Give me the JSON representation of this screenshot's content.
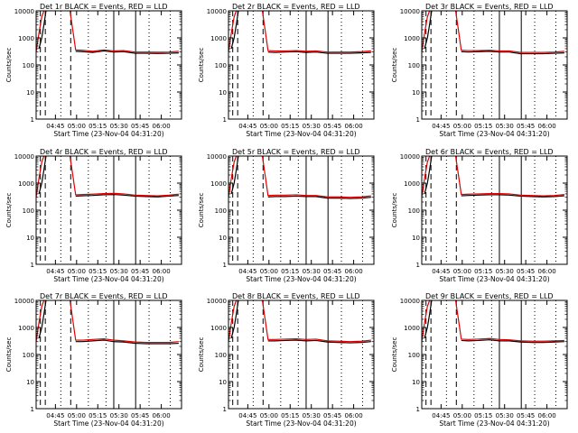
{
  "chart_data": {
    "type": "line",
    "layout": "3x3 grid of panels",
    "xlabel": "Start Time (23-Nov-04 04:31:20)",
    "ylabel": "Counts/sec",
    "yscale": "log",
    "ylim": [
      1,
      10000
    ],
    "yticks": [
      {
        "value": 1,
        "label": "1"
      },
      {
        "value": 10,
        "label": "10"
      },
      {
        "value": 100,
        "label": "100"
      },
      {
        "value": 1000,
        "label": "1000"
      },
      {
        "value": 10000,
        "label": "10000"
      }
    ],
    "xlim_minutes_after_0431": [
      0,
      103
    ],
    "xticks": [
      {
        "t": 13.67,
        "label": "04:45"
      },
      {
        "t": 28.67,
        "label": "05:00"
      },
      {
        "t": 43.67,
        "label": "05:15"
      },
      {
        "t": 58.67,
        "label": "05:30"
      },
      {
        "t": 73.67,
        "label": "05:45"
      },
      {
        "t": 88.67,
        "label": "06:00"
      }
    ],
    "x_units": "minutes after 04:31:20",
    "series_colors": {
      "events": "#000000",
      "lld": "#e00000"
    },
    "series_names": {
      "events": "Events",
      "lld": "LLD"
    },
    "vertical_markers": [
      {
        "t": 3.0,
        "style": "dashed"
      },
      {
        "t": 6.5,
        "style": "dashed"
      },
      {
        "t": 17.5,
        "style": "dotted"
      },
      {
        "t": 24.5,
        "style": "dashed"
      },
      {
        "t": 37.0,
        "style": "dotted"
      },
      {
        "t": 49.5,
        "style": "dotted"
      },
      {
        "t": 55.0,
        "style": "solid"
      },
      {
        "t": 70.5,
        "style": "solid"
      },
      {
        "t": 80.0,
        "style": "dotted"
      },
      {
        "t": 95.0,
        "style": "dotted"
      }
    ],
    "series_x_minutes": [
      0,
      2,
      4,
      5.5,
      7,
      9,
      11,
      20,
      24,
      28,
      33,
      40,
      48,
      55,
      62,
      70,
      78,
      86,
      94,
      101
    ],
    "panels": [
      {
        "title": "Det 1r BLACK = Events, RED = LLD",
        "events": [
          null,
          400,
          1000,
          3000,
          10000,
          null,
          null,
          null,
          null,
          320,
          310,
          290,
          330,
          300,
          310,
          270,
          270,
          265,
          270,
          280
        ],
        "lld": [
          300,
          1500,
          6000,
          10000,
          null,
          null,
          null,
          null,
          10000,
          360,
          350,
          320,
          360,
          330,
          340,
          300,
          300,
          295,
          300,
          320
        ]
      },
      {
        "title": "Det 2r BLACK = Events, RED = LLD",
        "events": [
          null,
          400,
          1000,
          3000,
          10000,
          null,
          null,
          null,
          null,
          300,
          290,
          300,
          310,
          290,
          300,
          270,
          270,
          270,
          280,
          290
        ],
        "lld": [
          300,
          1500,
          6000,
          10000,
          null,
          null,
          null,
          null,
          10000,
          340,
          330,
          330,
          340,
          320,
          330,
          300,
          300,
          300,
          310,
          330
        ]
      },
      {
        "title": "Det 3r BLACK = Events, RED = LLD",
        "events": [
          null,
          400,
          1000,
          3000,
          10000,
          null,
          null,
          null,
          null,
          310,
          300,
          310,
          320,
          300,
          300,
          260,
          260,
          260,
          270,
          280
        ],
        "lld": [
          300,
          1500,
          6000,
          10000,
          null,
          null,
          null,
          null,
          10000,
          350,
          340,
          340,
          350,
          330,
          330,
          290,
          290,
          290,
          300,
          320
        ]
      },
      {
        "title": "Det 4r BLACK = Events, RED = LLD",
        "events": [
          null,
          400,
          1000,
          3000,
          10000,
          null,
          null,
          null,
          null,
          330,
          340,
          350,
          370,
          380,
          360,
          330,
          320,
          310,
          330,
          350
        ],
        "lld": [
          300,
          1500,
          6000,
          10000,
          null,
          null,
          null,
          null,
          10000,
          370,
          380,
          390,
          410,
          420,
          400,
          360,
          350,
          340,
          360,
          390
        ]
      },
      {
        "title": "Det 5r BLACK = Events, RED = LLD",
        "events": [
          null,
          400,
          1000,
          3000,
          10000,
          null,
          null,
          null,
          null,
          310,
          320,
          320,
          330,
          320,
          320,
          280,
          280,
          270,
          280,
          300
        ],
        "lld": [
          300,
          1500,
          6000,
          10000,
          null,
          null,
          null,
          null,
          10000,
          350,
          360,
          360,
          370,
          350,
          350,
          310,
          310,
          300,
          310,
          340
        ]
      },
      {
        "title": "Det 6r BLACK = Events, RED = LLD",
        "events": [
          null,
          400,
          1000,
          3000,
          10000,
          null,
          null,
          null,
          null,
          340,
          350,
          360,
          370,
          370,
          360,
          330,
          320,
          310,
          320,
          340
        ],
        "lld": [
          300,
          1500,
          6000,
          10000,
          null,
          null,
          null,
          null,
          10000,
          380,
          390,
          400,
          410,
          410,
          400,
          360,
          350,
          340,
          350,
          380
        ]
      },
      {
        "title": "Det 7r BLACK = Events, RED = LLD",
        "events": [
          null,
          400,
          1000,
          3000,
          10000,
          null,
          null,
          null,
          null,
          300,
          300,
          320,
          340,
          300,
          290,
          260,
          250,
          250,
          250,
          260
        ],
        "lld": [
          300,
          1500,
          6000,
          10000,
          null,
          null,
          null,
          null,
          10000,
          340,
          340,
          360,
          380,
          340,
          320,
          290,
          280,
          280,
          280,
          300
        ]
      },
      {
        "title": "Det 8r BLACK = Events, RED = LLD",
        "events": [
          null,
          400,
          1000,
          3000,
          10000,
          null,
          null,
          null,
          null,
          320,
          320,
          330,
          340,
          320,
          330,
          290,
          280,
          270,
          280,
          300
        ],
        "lld": [
          300,
          1500,
          6000,
          10000,
          null,
          null,
          null,
          null,
          10000,
          360,
          360,
          370,
          380,
          360,
          370,
          320,
          310,
          300,
          310,
          340
        ]
      },
      {
        "title": "Det 9r BLACK = Events, RED = LLD",
        "events": [
          null,
          400,
          1000,
          3000,
          10000,
          null,
          null,
          null,
          null,
          330,
          320,
          330,
          350,
          320,
          320,
          290,
          280,
          280,
          290,
          300
        ],
        "lld": [
          300,
          1500,
          6000,
          10000,
          null,
          null,
          null,
          null,
          10000,
          370,
          360,
          370,
          390,
          360,
          350,
          320,
          310,
          310,
          320,
          330
        ]
      }
    ]
  }
}
